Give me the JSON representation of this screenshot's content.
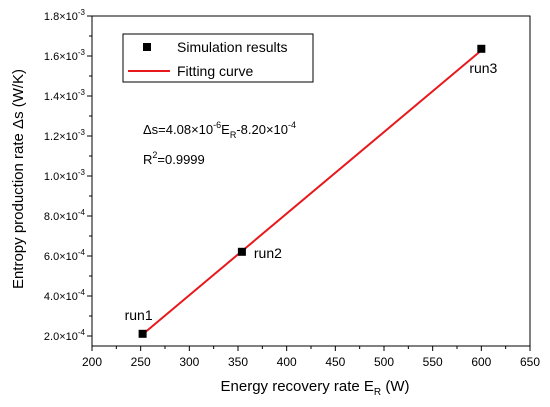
{
  "chart_data": {
    "type": "scatter",
    "xlabel": "Energy recovery rate E",
    "xlabel_sub": "R",
    "xlabel_unit": " (W)",
    "ylabel": "Entropy production rate Δs (W/K)",
    "xlim": [
      200,
      650
    ],
    "ylim": [
      0.00015,
      0.0018
    ],
    "x_ticks": [
      200,
      250,
      300,
      350,
      400,
      450,
      500,
      550,
      600,
      650
    ],
    "y_ticks": [
      {
        "value": 0.0002,
        "mant": "2.0×10",
        "exp": "-4"
      },
      {
        "value": 0.0004,
        "mant": "4.0×10",
        "exp": "-4"
      },
      {
        "value": 0.0006,
        "mant": "6.0×10",
        "exp": "-4"
      },
      {
        "value": 0.0008,
        "mant": "8.0×10",
        "exp": "-4"
      },
      {
        "value": 0.001,
        "mant": "1.0×10",
        "exp": "-3"
      },
      {
        "value": 0.0012,
        "mant": "1.2×10",
        "exp": "-3"
      },
      {
        "value": 0.0014,
        "mant": "1.4×10",
        "exp": "-3"
      },
      {
        "value": 0.0016,
        "mant": "1.6×10",
        "exp": "-3"
      },
      {
        "value": 0.0018,
        "mant": "1.8×10",
        "exp": "-3"
      }
    ],
    "series": [
      {
        "name": "Simulation results",
        "type": "scatter",
        "color": "#000000",
        "points": [
          {
            "x": 252,
            "y": 0.000211,
            "label": "run1"
          },
          {
            "x": 354,
            "y": 0.000621,
            "label": "run2"
          },
          {
            "x": 600,
            "y": 0.001636,
            "label": "run3"
          }
        ]
      },
      {
        "name": "Fitting curve",
        "type": "line",
        "color": "#e8191c",
        "slope": 4.08e-06,
        "intercept": -0.00082,
        "x_range": [
          252,
          600
        ]
      }
    ],
    "legend_position": "top-left",
    "grid": false,
    "annotations": {
      "equation": {
        "a": "Δs=4.08×10",
        "a_exp": "-6",
        "b": "E",
        "b_sub": "R",
        "c": "-8.20×10",
        "c_exp": "-4"
      },
      "r2": {
        "a": "R",
        "a_exp": "2",
        "b": "=0.9999"
      }
    }
  }
}
